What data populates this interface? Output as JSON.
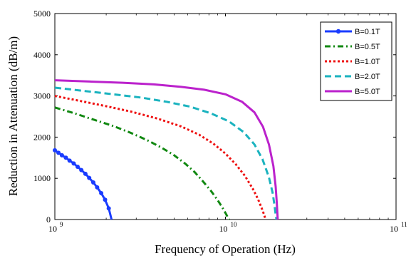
{
  "chart_data": {
    "type": "line",
    "xlabel": "Frequency of Operation (Hz)",
    "ylabel": "Reduction in Attenuation (dB/m)",
    "xscale": "log",
    "xlim": [
      1000000000,
      100000000000
    ],
    "ylim": [
      0,
      5000
    ],
    "x_ticks": [
      {
        "base": "10",
        "exp": "9"
      },
      {
        "base": "10",
        "exp": "10"
      },
      {
        "base": "10",
        "exp": "11"
      }
    ],
    "y_ticks": [
      "0",
      "1000",
      "2000",
      "3000",
      "4000",
      "5000"
    ],
    "legend_position": "top-right",
    "grid": false,
    "series": [
      {
        "name": "B=0.1T",
        "color": "#1a3cff",
        "style": "solid-dot",
        "x": [
          1000000000.0,
          1050000000.0,
          1100000000.0,
          1160000000.0,
          1220000000.0,
          1290000000.0,
          1360000000.0,
          1430000000.0,
          1510000000.0,
          1590000000.0,
          1680000000.0,
          1770000000.0,
          1870000000.0,
          1970000000.0,
          2070000000.0,
          2150000000.0
        ],
        "y": [
          1680,
          1620,
          1560,
          1500,
          1430,
          1360,
          1280,
          1200,
          1110,
          1010,
          900,
          780,
          640,
          480,
          270,
          0
        ]
      },
      {
        "name": "B=0.5T",
        "color": "#118811",
        "style": "dashdot",
        "x": [
          1000000000.0,
          1300000000.0,
          1700000000.0,
          2200000000.0,
          2800000000.0,
          3500000000.0,
          4200000000.0,
          5000000000.0,
          5800000000.0,
          6600000000.0,
          7400000000.0,
          8200000000.0,
          8900000000.0,
          9500000000.0,
          10000000000.0,
          10300000000.0,
          10500000000.0
        ],
        "y": [
          2720,
          2580,
          2420,
          2270,
          2100,
          1920,
          1750,
          1560,
          1360,
          1150,
          920,
          700,
          500,
          320,
          160,
          60,
          0
        ]
      },
      {
        "name": "B=1.0T",
        "color": "#ee1111",
        "style": "dotted",
        "x": [
          1000000000.0,
          1400000000.0,
          2000000000.0,
          2800000000.0,
          4000000000.0,
          5500000000.0,
          7000000000.0,
          8500000000.0,
          10000000000.0,
          11500000000.0,
          13000000000.0,
          14500000000.0,
          15500000000.0,
          16300000000.0,
          16900000000.0,
          17200000000.0
        ],
        "y": [
          3000,
          2880,
          2750,
          2620,
          2450,
          2260,
          2060,
          1840,
          1600,
          1340,
          1060,
          740,
          500,
          280,
          100,
          0
        ]
      },
      {
        "name": "B=2.0T",
        "color": "#1bb3bf",
        "style": "dashed",
        "x": [
          1000000000.0,
          1500000000.0,
          2200000000.0,
          3200000000.0,
          4500000000.0,
          6200000000.0,
          8200000000.0,
          10500000000.0,
          12800000000.0,
          14800000000.0,
          16500000000.0,
          18000000000.0,
          18900000000.0,
          19400000000.0,
          19700000000.0,
          19900000000.0
        ],
        "y": [
          3200,
          3120,
          3040,
          2960,
          2860,
          2740,
          2580,
          2380,
          2120,
          1820,
          1460,
          1020,
          650,
          340,
          120,
          0
        ]
      },
      {
        "name": "B=5.0T",
        "color": "#bb22cc",
        "style": "solid",
        "x": [
          1000000000.0,
          1600000000.0,
          2500000000.0,
          3800000000.0,
          5500000000.0,
          7500000000.0,
          10000000000.0,
          12500000000.0,
          14800000000.0,
          16600000000.0,
          18000000000.0,
          19100000000.0,
          19700000000.0,
          20000000000.0,
          20150000000.0,
          20250000000.0
        ],
        "y": [
          3380,
          3350,
          3320,
          3280,
          3220,
          3150,
          3040,
          2860,
          2600,
          2250,
          1820,
          1300,
          800,
          400,
          150,
          0
        ]
      }
    ]
  }
}
